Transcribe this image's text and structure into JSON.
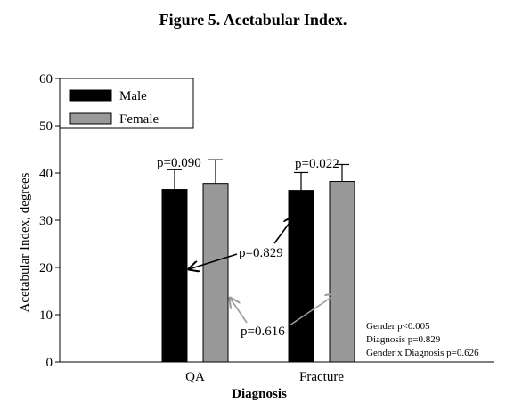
{
  "chart_data": {
    "type": "bar",
    "title": "Figure 5. Acetabular Index.",
    "xlabel": "Diagnosis",
    "ylabel": "Acetabular Index, degrees",
    "categories": [
      "QA",
      "Fracture"
    ],
    "series": [
      {
        "name": "Male",
        "values": [
          36.5,
          36.3
        ],
        "errors": [
          4.2,
          3.8
        ],
        "color": "#000000"
      },
      {
        "name": "Female",
        "values": [
          37.8,
          38.2
        ],
        "errors": [
          5.0,
          3.6
        ],
        "color": "#999999"
      }
    ],
    "ylim": [
      0,
      60
    ],
    "yticks": [
      0,
      10,
      20,
      30,
      40,
      50,
      60
    ],
    "legend_position": "top-left",
    "grid": false,
    "annotations": {
      "p_qa": "p=0.090",
      "p_fracture": "p=0.022",
      "p_male": "p=0.829",
      "p_female": "p=0.616"
    },
    "stats": [
      "Gender p<0.005",
      "Diagnosis p=0.829",
      "Gender x Diagnosis p=0.626"
    ]
  }
}
